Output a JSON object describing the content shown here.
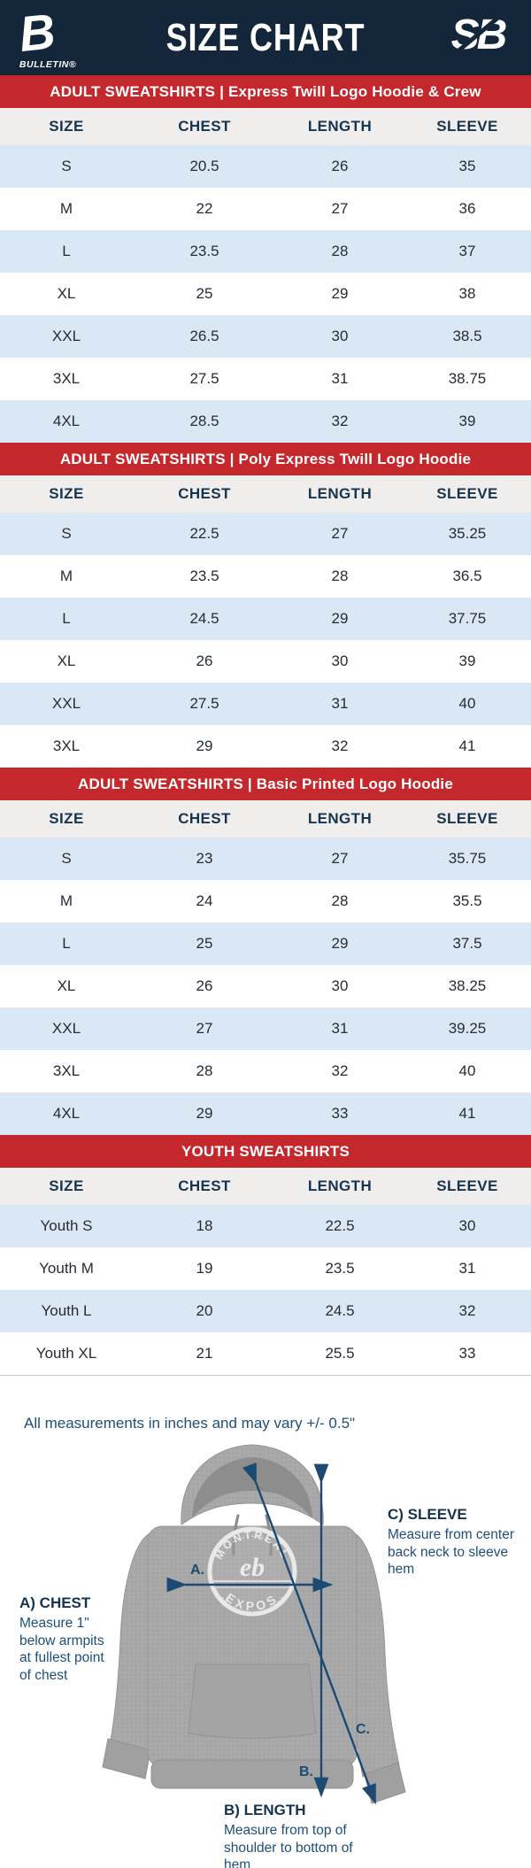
{
  "header": {
    "title": "SIZE CHART",
    "left_logo_letter": "B",
    "left_logo_caption": "BULLETIN®",
    "right_logo_text": "SB"
  },
  "columns": [
    "SIZE",
    "CHEST",
    "LENGTH",
    "SLEEVE"
  ],
  "tables": [
    {
      "banner": "ADULT SWEATSHIRTS | Express Twill Logo Hoodie & Crew",
      "rows": [
        [
          "S",
          "20.5",
          "26",
          "35"
        ],
        [
          "M",
          "22",
          "27",
          "36"
        ],
        [
          "L",
          "23.5",
          "28",
          "37"
        ],
        [
          "XL",
          "25",
          "29",
          "38"
        ],
        [
          "XXL",
          "26.5",
          "30",
          "38.5"
        ],
        [
          "3XL",
          "27.5",
          "31",
          "38.75"
        ],
        [
          "4XL",
          "28.5",
          "32",
          "39"
        ]
      ]
    },
    {
      "banner": "ADULT SWEATSHIRTS | Poly Express Twill Logo Hoodie",
      "rows": [
        [
          "S",
          "22.5",
          "27",
          "35.25"
        ],
        [
          "M",
          "23.5",
          "28",
          "36.5"
        ],
        [
          "L",
          "24.5",
          "29",
          "37.75"
        ],
        [
          "XL",
          "26",
          "30",
          "39"
        ],
        [
          "XXL",
          "27.5",
          "31",
          "40"
        ],
        [
          "3XL",
          "29",
          "32",
          "41"
        ]
      ]
    },
    {
      "banner": "ADULT SWEATSHIRTS | Basic Printed Logo Hoodie",
      "rows": [
        [
          "S",
          "23",
          "27",
          "35.75"
        ],
        [
          "M",
          "24",
          "28",
          "35.5"
        ],
        [
          "L",
          "25",
          "29",
          "37.5"
        ],
        [
          "XL",
          "26",
          "30",
          "38.25"
        ],
        [
          "XXL",
          "27",
          "31",
          "39.25"
        ],
        [
          "3XL",
          "28",
          "32",
          "40"
        ],
        [
          "4XL",
          "29",
          "33",
          "41"
        ]
      ]
    },
    {
      "banner": "YOUTH SWEATSHIRTS",
      "rows": [
        [
          "Youth S",
          "18",
          "22.5",
          "30"
        ],
        [
          "Youth M",
          "19",
          "23.5",
          "31"
        ],
        [
          "Youth L",
          "20",
          "24.5",
          "32"
        ],
        [
          "Youth XL",
          "21",
          "25.5",
          "33"
        ]
      ]
    }
  ],
  "note": "All measurements in inches and may vary +/- 0.5\"",
  "diagram": {
    "hoodie_logo_top": "MONTRÉAL",
    "hoodie_logo_bottom": "EXPOS",
    "hoodie_logo_center": "eb",
    "marker_a": "A.",
    "marker_b": "B.",
    "marker_c": "C.",
    "label_a_title": "A) CHEST",
    "label_a_desc": "Measure 1\" below armpits at fullest point of chest",
    "label_b_title": "B) LENGTH",
    "label_b_desc": "Measure from top of shoulder to bottom of hem",
    "label_c_title": "C) SLEEVE",
    "label_c_desc": "Measure from center back neck to sleeve hem"
  },
  "colors": {
    "navy_header": "#14273a",
    "banner_red": "#c4282c",
    "row_blue": "#d9e8f4",
    "row_white": "#ffffff",
    "header_row_gray": "#f0eeec",
    "header_text_navy": "#17344f",
    "annotation_navy": "#1d4f78",
    "arrow_navy": "#1d4a73",
    "hoodie_gray": "#a8a8a8"
  },
  "chart_data": [
    {
      "type": "table",
      "title": "ADULT SWEATSHIRTS | Express Twill Logo Hoodie & Crew",
      "columns": [
        "SIZE",
        "CHEST",
        "LENGTH",
        "SLEEVE"
      ],
      "rows": [
        [
          "S",
          20.5,
          26,
          35
        ],
        [
          "M",
          22,
          27,
          36
        ],
        [
          "L",
          23.5,
          28,
          37
        ],
        [
          "XL",
          25,
          29,
          38
        ],
        [
          "XXL",
          26.5,
          30,
          38.5
        ],
        [
          "3XL",
          27.5,
          31,
          38.75
        ],
        [
          "4XL",
          28.5,
          32,
          39
        ]
      ]
    },
    {
      "type": "table",
      "title": "ADULT SWEATSHIRTS | Poly Express Twill Logo Hoodie",
      "columns": [
        "SIZE",
        "CHEST",
        "LENGTH",
        "SLEEVE"
      ],
      "rows": [
        [
          "S",
          22.5,
          27,
          35.25
        ],
        [
          "M",
          23.5,
          28,
          36.5
        ],
        [
          "L",
          24.5,
          29,
          37.75
        ],
        [
          "XL",
          26,
          30,
          39
        ],
        [
          "XXL",
          27.5,
          31,
          40
        ],
        [
          "3XL",
          29,
          32,
          41
        ]
      ]
    },
    {
      "type": "table",
      "title": "ADULT SWEATSHIRTS | Basic Printed Logo Hoodie",
      "columns": [
        "SIZE",
        "CHEST",
        "LENGTH",
        "SLEEVE"
      ],
      "rows": [
        [
          "S",
          23,
          27,
          35.75
        ],
        [
          "M",
          24,
          28,
          35.5
        ],
        [
          "L",
          25,
          29,
          37.5
        ],
        [
          "XL",
          26,
          30,
          38.25
        ],
        [
          "XXL",
          27,
          31,
          39.25
        ],
        [
          "3XL",
          28,
          32,
          40
        ],
        [
          "4XL",
          29,
          33,
          41
        ]
      ]
    },
    {
      "type": "table",
      "title": "YOUTH SWEATSHIRTS",
      "columns": [
        "SIZE",
        "CHEST",
        "LENGTH",
        "SLEEVE"
      ],
      "rows": [
        [
          "Youth S",
          18,
          22.5,
          30
        ],
        [
          "Youth M",
          19,
          23.5,
          31
        ],
        [
          "Youth L",
          20,
          24.5,
          32
        ],
        [
          "Youth XL",
          21,
          25.5,
          33
        ]
      ]
    }
  ]
}
